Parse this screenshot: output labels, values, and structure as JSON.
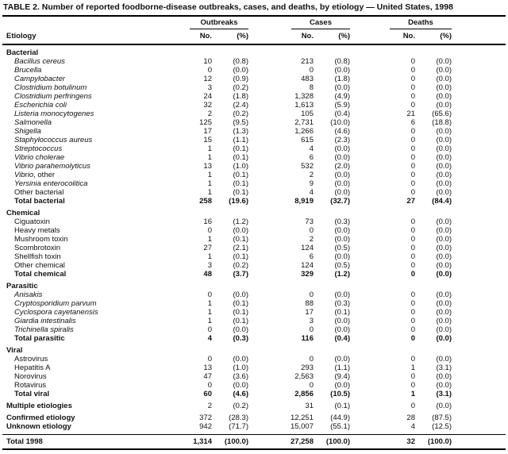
{
  "title": "TABLE 2. Number of reported foodborne-disease outbreaks, cases, and deaths, by etiology — United States, 1998",
  "columns": {
    "etiology": "Etiology",
    "groups": [
      "Outbreaks",
      "Cases",
      "Deaths"
    ],
    "no": "No.",
    "pct": "(%)"
  },
  "rows": [
    {
      "cls": "section gap",
      "em": "",
      "label": "Bacterial",
      "o_no": "",
      "o_pct": "",
      "c_no": "",
      "c_pct": "",
      "d_no": "",
      "d_pct": ""
    },
    {
      "cls": "item",
      "em": "Bacillus cereus",
      "label": "",
      "o_no": "10",
      "o_pct": "(0.8)",
      "c_no": "213",
      "c_pct": "(0.8)",
      "d_no": "0",
      "d_pct": "(0.0)"
    },
    {
      "cls": "item",
      "em": "Brucella",
      "label": "",
      "o_no": "0",
      "o_pct": "(0.0)",
      "c_no": "0",
      "c_pct": "(0.0)",
      "d_no": "0",
      "d_pct": "(0.0)"
    },
    {
      "cls": "item",
      "em": "Campylobacter",
      "label": "",
      "o_no": "12",
      "o_pct": "(0.9)",
      "c_no": "483",
      "c_pct": "(1.8)",
      "d_no": "0",
      "d_pct": "(0.0)"
    },
    {
      "cls": "item",
      "em": "Clostridium botulinum",
      "label": "",
      "o_no": "3",
      "o_pct": "(0.2)",
      "c_no": "8",
      "c_pct": "(0.0)",
      "d_no": "0",
      "d_pct": "(0.0)"
    },
    {
      "cls": "item",
      "em": "Clostridium perfringens",
      "label": "",
      "o_no": "24",
      "o_pct": "(1.8)",
      "c_no": "1,328",
      "c_pct": "(4.9)",
      "d_no": "0",
      "d_pct": "(0.0)"
    },
    {
      "cls": "item",
      "em": "Escherichia coli",
      "label": "",
      "o_no": "32",
      "o_pct": "(2.4)",
      "c_no": "1,613",
      "c_pct": "(5.9)",
      "d_no": "0",
      "d_pct": "(0.0)"
    },
    {
      "cls": "item",
      "em": "Listeria monocytogenes",
      "label": "",
      "o_no": "2",
      "o_pct": "(0.2)",
      "c_no": "105",
      "c_pct": "(0.4)",
      "d_no": "21",
      "d_pct": "(65.6)"
    },
    {
      "cls": "item",
      "em": "Salmonella",
      "label": "",
      "o_no": "125",
      "o_pct": "(9.5)",
      "c_no": "2,731",
      "c_pct": "(10.0)",
      "d_no": "6",
      "d_pct": "(18.8)"
    },
    {
      "cls": "item",
      "em": "Shigella",
      "label": "",
      "o_no": "17",
      "o_pct": "(1.3)",
      "c_no": "1,266",
      "c_pct": "(4.6)",
      "d_no": "0",
      "d_pct": "(0.0)"
    },
    {
      "cls": "item",
      "em": "Staphylococcus aureus",
      "label": "",
      "o_no": "15",
      "o_pct": "(1.1)",
      "c_no": "615",
      "c_pct": "(2.3)",
      "d_no": "0",
      "d_pct": "(0.0)"
    },
    {
      "cls": "item",
      "em": "Streptococcus",
      "label": "",
      "o_no": "1",
      "o_pct": "(0.1)",
      "c_no": "4",
      "c_pct": "(0.0)",
      "d_no": "0",
      "d_pct": "(0.0)"
    },
    {
      "cls": "item",
      "em": "Vibrio cholerae",
      "label": "",
      "o_no": "1",
      "o_pct": "(0.1)",
      "c_no": "6",
      "c_pct": "(0.0)",
      "d_no": "0",
      "d_pct": "(0.0)"
    },
    {
      "cls": "item",
      "em": "Vibrio parahemolyticus",
      "label": "",
      "o_no": "13",
      "o_pct": "(1.0)",
      "c_no": "532",
      "c_pct": "(2.0)",
      "d_no": "0",
      "d_pct": "(0.0)"
    },
    {
      "cls": "item",
      "em": "Vibrio",
      "label": ", other",
      "o_no": "1",
      "o_pct": "(0.1)",
      "c_no": "2",
      "c_pct": "(0.0)",
      "d_no": "0",
      "d_pct": "(0.0)"
    },
    {
      "cls": "item",
      "em": "Yersinia enterocolitica",
      "label": "",
      "o_no": "1",
      "o_pct": "(0.1)",
      "c_no": "9",
      "c_pct": "(0.0)",
      "d_no": "0",
      "d_pct": "(0.0)"
    },
    {
      "cls": "item",
      "em": "",
      "label": "Other bacterial",
      "o_no": "1",
      "o_pct": "(0.1)",
      "c_no": "4",
      "c_pct": "(0.0)",
      "d_no": "0",
      "d_pct": "(0.0)"
    },
    {
      "cls": "total",
      "em": "",
      "label": "Total bacterial",
      "o_no": "258",
      "o_pct": "(19.6)",
      "c_no": "8,919",
      "c_pct": "(32.7)",
      "d_no": "27",
      "d_pct": "(84.4)"
    },
    {
      "cls": "section gap",
      "em": "",
      "label": "Chemical",
      "o_no": "",
      "o_pct": "",
      "c_no": "",
      "c_pct": "",
      "d_no": "",
      "d_pct": ""
    },
    {
      "cls": "item",
      "em": "",
      "label": "Ciguatoxin",
      "o_no": "16",
      "o_pct": "(1.2)",
      "c_no": "73",
      "c_pct": "(0.3)",
      "d_no": "0",
      "d_pct": "(0.0)"
    },
    {
      "cls": "item",
      "em": "",
      "label": "Heavy metals",
      "o_no": "0",
      "o_pct": "(0.0)",
      "c_no": "0",
      "c_pct": "(0.0)",
      "d_no": "0",
      "d_pct": "(0.0)"
    },
    {
      "cls": "item",
      "em": "",
      "label": "Mushroom toxin",
      "o_no": "1",
      "o_pct": "(0.1)",
      "c_no": "2",
      "c_pct": "(0.0)",
      "d_no": "0",
      "d_pct": "(0.0)"
    },
    {
      "cls": "item",
      "em": "",
      "label": "Scombrotoxin",
      "o_no": "27",
      "o_pct": "(2.1)",
      "c_no": "124",
      "c_pct": "(0.5)",
      "d_no": "0",
      "d_pct": "(0.0)"
    },
    {
      "cls": "item",
      "em": "",
      "label": "Shellfish toxin",
      "o_no": "1",
      "o_pct": "(0.1)",
      "c_no": "6",
      "c_pct": "(0.0)",
      "d_no": "0",
      "d_pct": "(0.0)"
    },
    {
      "cls": "item",
      "em": "",
      "label": "Other chemical",
      "o_no": "3",
      "o_pct": "(0.2)",
      "c_no": "124",
      "c_pct": "(0.5)",
      "d_no": "0",
      "d_pct": "(0.0)"
    },
    {
      "cls": "total",
      "em": "",
      "label": "Total chemical",
      "o_no": "48",
      "o_pct": "(3.7)",
      "c_no": "329",
      "c_pct": "(1.2)",
      "d_no": "0",
      "d_pct": "(0.0)"
    },
    {
      "cls": "section gap",
      "em": "",
      "label": "Parasitic",
      "o_no": "",
      "o_pct": "",
      "c_no": "",
      "c_pct": "",
      "d_no": "",
      "d_pct": ""
    },
    {
      "cls": "item",
      "em": "Anisakis",
      "label": "",
      "o_no": "0",
      "o_pct": "(0.0)",
      "c_no": "0",
      "c_pct": "(0.0)",
      "d_no": "0",
      "d_pct": "(0.0)"
    },
    {
      "cls": "item",
      "em": "Cryptosporidium parvum",
      "label": "",
      "o_no": "1",
      "o_pct": "(0.1)",
      "c_no": "88",
      "c_pct": "(0.3)",
      "d_no": "0",
      "d_pct": "(0.0)"
    },
    {
      "cls": "item",
      "em": "Cyclospora cayetanensis",
      "label": "",
      "o_no": "1",
      "o_pct": "(0.1)",
      "c_no": "17",
      "c_pct": "(0.1)",
      "d_no": "0",
      "d_pct": "(0.0)"
    },
    {
      "cls": "item",
      "em": "Giardia intestinalis",
      "label": "",
      "o_no": "1",
      "o_pct": "(0.1)",
      "c_no": "3",
      "c_pct": "(0.0)",
      "d_no": "0",
      "d_pct": "(0.0)"
    },
    {
      "cls": "item",
      "em": "Trichinella spiralis",
      "label": "",
      "o_no": "0",
      "o_pct": "(0.0)",
      "c_no": "0",
      "c_pct": "(0.0)",
      "d_no": "0",
      "d_pct": "(0.0)"
    },
    {
      "cls": "total",
      "em": "",
      "label": "Total parasitic",
      "o_no": "4",
      "o_pct": "(0.3)",
      "c_no": "116",
      "c_pct": "(0.4)",
      "d_no": "0",
      "d_pct": "(0.0)"
    },
    {
      "cls": "section gap",
      "em": "",
      "label": "Viral",
      "o_no": "",
      "o_pct": "",
      "c_no": "",
      "c_pct": "",
      "d_no": "",
      "d_pct": ""
    },
    {
      "cls": "item",
      "em": "",
      "label": "Astrovirus",
      "o_no": "0",
      "o_pct": "(0.0)",
      "c_no": "0",
      "c_pct": "(0.0)",
      "d_no": "0",
      "d_pct": "(0.0)"
    },
    {
      "cls": "item",
      "em": "",
      "label": "Hepatitis A",
      "o_no": "13",
      "o_pct": "(1.0)",
      "c_no": "293",
      "c_pct": "(1.1)",
      "d_no": "1",
      "d_pct": "(3.1)"
    },
    {
      "cls": "item",
      "em": "",
      "label": "Norovirus",
      "o_no": "47",
      "o_pct": "(3.6)",
      "c_no": "2,563",
      "c_pct": "(9.4)",
      "d_no": "0",
      "d_pct": "(0.0)"
    },
    {
      "cls": "item",
      "em": "",
      "label": "Rotavirus",
      "o_no": "0",
      "o_pct": "(0.0)",
      "c_no": "0",
      "c_pct": "(0.0)",
      "d_no": "0",
      "d_pct": "(0.0)"
    },
    {
      "cls": "total",
      "em": "",
      "label": "Total viral",
      "o_no": "60",
      "o_pct": "(4.6)",
      "c_no": "2,856",
      "c_pct": "(10.5)",
      "d_no": "1",
      "d_pct": "(3.1)"
    },
    {
      "cls": "summary gap",
      "em": "",
      "label": "Multiple etiologies",
      "o_no": "2",
      "o_pct": "(0.2)",
      "c_no": "31",
      "c_pct": "(0.1)",
      "d_no": "0",
      "d_pct": "(0.0)"
    },
    {
      "cls": "summary gap",
      "em": "",
      "label": "Confirmed etiology",
      "o_no": "372",
      "o_pct": "(28.3)",
      "c_no": "12,251",
      "c_pct": "(44.9)",
      "d_no": "28",
      "d_pct": "(87.5)"
    },
    {
      "cls": "summary pad-b",
      "em": "",
      "label": "Unknown etiology",
      "o_no": "942",
      "o_pct": "(71.7)",
      "c_no": "15,007",
      "c_pct": "(55.1)",
      "d_no": "4",
      "d_pct": "(12.5)"
    },
    {
      "cls": "grand",
      "em": "",
      "label": "Total 1998",
      "o_no": "1,314",
      "o_pct": "(100.0)",
      "c_no": "27,258",
      "c_pct": "(100.0)",
      "d_no": "32",
      "d_pct": "(100.0)"
    }
  ]
}
